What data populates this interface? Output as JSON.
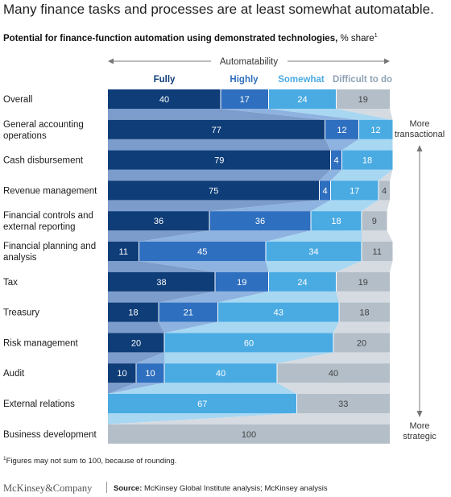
{
  "headline": "Many finance tasks and processes are at least somewhat automatable.",
  "subtitle": {
    "main": "Potential for finance-function automation using demonstrated technologies,",
    "unit": "% share",
    "note_marker": "1"
  },
  "chart_data": {
    "type": "bar",
    "orientation": "horizontal",
    "stacked": true,
    "axis_title": "Automatability",
    "categories": [
      "Overall",
      "General accounting operations",
      "Cash disbursement",
      "Revenue management",
      "Financial controls and external reporting",
      "Financial planning and analysis",
      "Tax",
      "Treasury",
      "Risk management",
      "Audit",
      "External relations",
      "Business development"
    ],
    "series": [
      {
        "name": "Fully",
        "color": "#0e3d78",
        "values": [
          40,
          77,
          79,
          75,
          36,
          11,
          38,
          18,
          20,
          10,
          0,
          0
        ]
      },
      {
        "name": "Highly",
        "color": "#2f6fbf",
        "values": [
          17,
          12,
          4,
          4,
          36,
          45,
          19,
          21,
          0,
          10,
          0,
          0
        ]
      },
      {
        "name": "Somewhat",
        "color": "#4aabe3",
        "values": [
          24,
          12,
          18,
          17,
          18,
          34,
          24,
          43,
          60,
          40,
          67,
          0
        ]
      },
      {
        "name": "Difficult to do",
        "color": "#b3bec8",
        "values": [
          19,
          0,
          0,
          4,
          9,
          11,
          19,
          18,
          20,
          40,
          33,
          100
        ]
      }
    ],
    "series_label_colors": [
      "#0e3d78",
      "#2f6fbf",
      "#4aabe3",
      "#8ea2b4"
    ],
    "side_labels": {
      "top": "More transactional",
      "bottom": "More strategic"
    },
    "xlim": [
      0,
      100
    ]
  },
  "footnote": {
    "marker": "1",
    "text": "Figures may not sum to 100, because of rounding."
  },
  "brand": "McKinsey&Company",
  "source": {
    "label": "Source:",
    "text": "McKinsey Global Institute analysis; McKinsey analysis"
  }
}
